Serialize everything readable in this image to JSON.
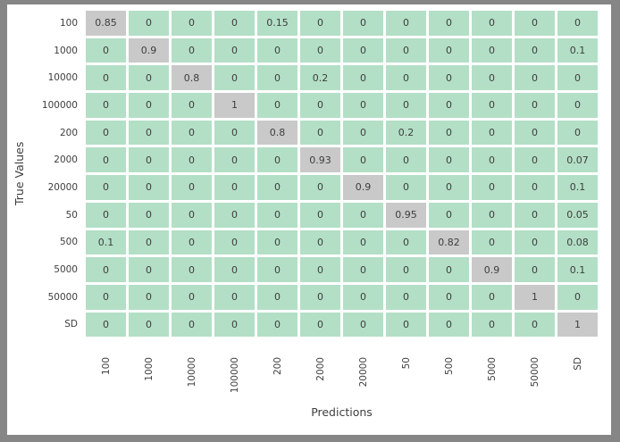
{
  "frame": {
    "color": "#868686",
    "panel_color": "#ffffff"
  },
  "chart_data": {
    "type": "heatmap",
    "title": "",
    "xlabel": "Predictions",
    "ylabel": "True Values",
    "x_tick_labels": [
      "100",
      "1000",
      "10000",
      "100000",
      "200",
      "2000",
      "20000",
      "50",
      "500",
      "5000",
      "50000",
      "SD"
    ],
    "y_tick_labels": [
      "100",
      "1000",
      "10000",
      "100000",
      "200",
      "2000",
      "20000",
      "50",
      "500",
      "5000",
      "50000",
      "SD"
    ],
    "matrix": [
      [
        0.85,
        0,
        0,
        0,
        0.15,
        0,
        0,
        0,
        0,
        0,
        0,
        0
      ],
      [
        0,
        0.9,
        0,
        0,
        0,
        0,
        0,
        0,
        0,
        0,
        0,
        0.1
      ],
      [
        0,
        0,
        0.8,
        0,
        0,
        0.2,
        0,
        0,
        0,
        0,
        0,
        0
      ],
      [
        0,
        0,
        0,
        1,
        0,
        0,
        0,
        0,
        0,
        0,
        0,
        0
      ],
      [
        0,
        0,
        0,
        0,
        0.8,
        0,
        0,
        0.2,
        0,
        0,
        0,
        0
      ],
      [
        0,
        0,
        0,
        0,
        0,
        0.93,
        0,
        0,
        0,
        0,
        0,
        0.07
      ],
      [
        0,
        0,
        0,
        0,
        0,
        0,
        0.9,
        0,
        0,
        0,
        0,
        0.1
      ],
      [
        0,
        0,
        0,
        0,
        0,
        0,
        0,
        0.95,
        0,
        0,
        0,
        0.05
      ],
      [
        0.1,
        0,
        0,
        0,
        0,
        0,
        0,
        0,
        0.82,
        0,
        0,
        0.08
      ],
      [
        0,
        0,
        0,
        0,
        0,
        0,
        0,
        0,
        0,
        0.9,
        0,
        0.1
      ],
      [
        0,
        0,
        0,
        0,
        0,
        0,
        0,
        0,
        0,
        0,
        1,
        0
      ],
      [
        0,
        0,
        0,
        0,
        0,
        0,
        0,
        0,
        0,
        0,
        0,
        1
      ]
    ],
    "cell_colors": {
      "low_value": "#b3dfc6",
      "high_value": "#c9c9c9"
    },
    "color_rule": "value >= 0.8 -> high_value gray, else low_value green",
    "text_color": "#3e3e3e",
    "grid": false,
    "legend": "none"
  }
}
